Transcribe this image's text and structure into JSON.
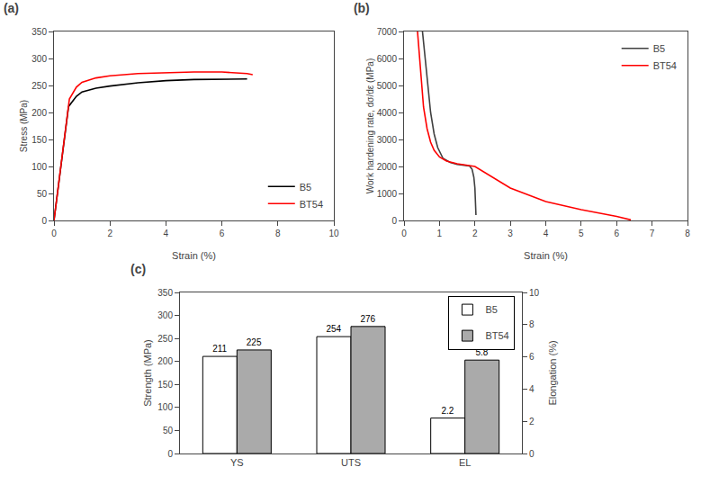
{
  "chart_data": [
    {
      "type": "line",
      "title": "(a)",
      "xlabel": "Strain (%)",
      "ylabel": "Stress (MPa)",
      "xlim": [
        0,
        10
      ],
      "ylim": [
        0,
        350
      ],
      "xticks": [
        0,
        2,
        4,
        6,
        8,
        10
      ],
      "yticks": [
        0,
        50,
        100,
        150,
        200,
        250,
        300,
        350
      ],
      "grid": false,
      "legend": "lower right",
      "series": [
        {
          "name": "B5",
          "color": "#000000",
          "x": [
            0,
            0.52,
            0.8,
            1.0,
            1.5,
            2.0,
            3.0,
            4.0,
            5.0,
            6.0,
            6.9
          ],
          "values": [
            0,
            211,
            230,
            238,
            245,
            249,
            255,
            259,
            261,
            262,
            262
          ]
        },
        {
          "name": "BT54",
          "color": "#ff0000",
          "x": [
            0,
            0.55,
            0.8,
            1.0,
            1.5,
            2.0,
            3.0,
            4.0,
            5.0,
            6.0,
            6.5,
            6.9,
            7.1
          ],
          "values": [
            0,
            225,
            247,
            256,
            264,
            268,
            272,
            274,
            275,
            275,
            274,
            272,
            270
          ]
        }
      ]
    },
    {
      "type": "line",
      "title": "(b)",
      "xlabel": "Strain (%)",
      "ylabel": "Work hardening rate, dσ/dε (MPa)",
      "xlim": [
        0,
        8
      ],
      "ylim": [
        0,
        7000
      ],
      "xticks": [
        0,
        1,
        2,
        3,
        4,
        5,
        6,
        7,
        8
      ],
      "yticks": [
        0,
        1000,
        2000,
        3000,
        4000,
        5000,
        6000,
        7000
      ],
      "grid": false,
      "legend": "upper right",
      "series": [
        {
          "name": "B5",
          "color": "#404040",
          "x": [
            0.52,
            0.58,
            0.65,
            0.75,
            0.85,
            0.95,
            1.1,
            1.3,
            1.5,
            1.7,
            1.85,
            1.92,
            1.97,
            2.0,
            2.03
          ],
          "values": [
            7000,
            6200,
            5200,
            4000,
            3200,
            2700,
            2300,
            2150,
            2080,
            2050,
            2020,
            1900,
            1600,
            1200,
            200
          ]
        },
        {
          "name": "BT54",
          "color": "#ff0000",
          "x": [
            0.38,
            0.45,
            0.55,
            0.65,
            0.75,
            0.85,
            1.0,
            1.2,
            1.5,
            2.0,
            2.5,
            3.0,
            4.0,
            5.0,
            6.0,
            6.4
          ],
          "values": [
            7000,
            5800,
            4200,
            3400,
            2900,
            2600,
            2350,
            2200,
            2100,
            2000,
            1600,
            1200,
            700,
            400,
            150,
            20
          ]
        }
      ]
    },
    {
      "type": "bar",
      "title": "(c)",
      "ylabel": "Strength (MPa)",
      "y2label": "Elongation (%)",
      "categories": [
        "YS",
        "UTS",
        "EL"
      ],
      "ylim": [
        0,
        350
      ],
      "yticks": [
        0,
        50,
        100,
        150,
        200,
        250,
        300,
        350
      ],
      "y2lim": [
        0,
        10
      ],
      "y2ticks": [
        0,
        2,
        4,
        6,
        8,
        10
      ],
      "grid": false,
      "legend": "upper right",
      "data_labels": true,
      "series": [
        {
          "name": "B5",
          "color": "#ffffff",
          "values": [
            211,
            254,
            null
          ]
        },
        {
          "name": "BT54",
          "color": "#aaaaaa",
          "values": [
            225,
            276,
            null
          ]
        },
        {
          "name": "B5",
          "color": "#ffffff",
          "values": [
            null,
            null,
            2.2
          ],
          "axis": "y2"
        },
        {
          "name": "BT54",
          "color": "#aaaaaa",
          "values": [
            null,
            null,
            5.8
          ],
          "axis": "y2"
        }
      ]
    }
  ]
}
